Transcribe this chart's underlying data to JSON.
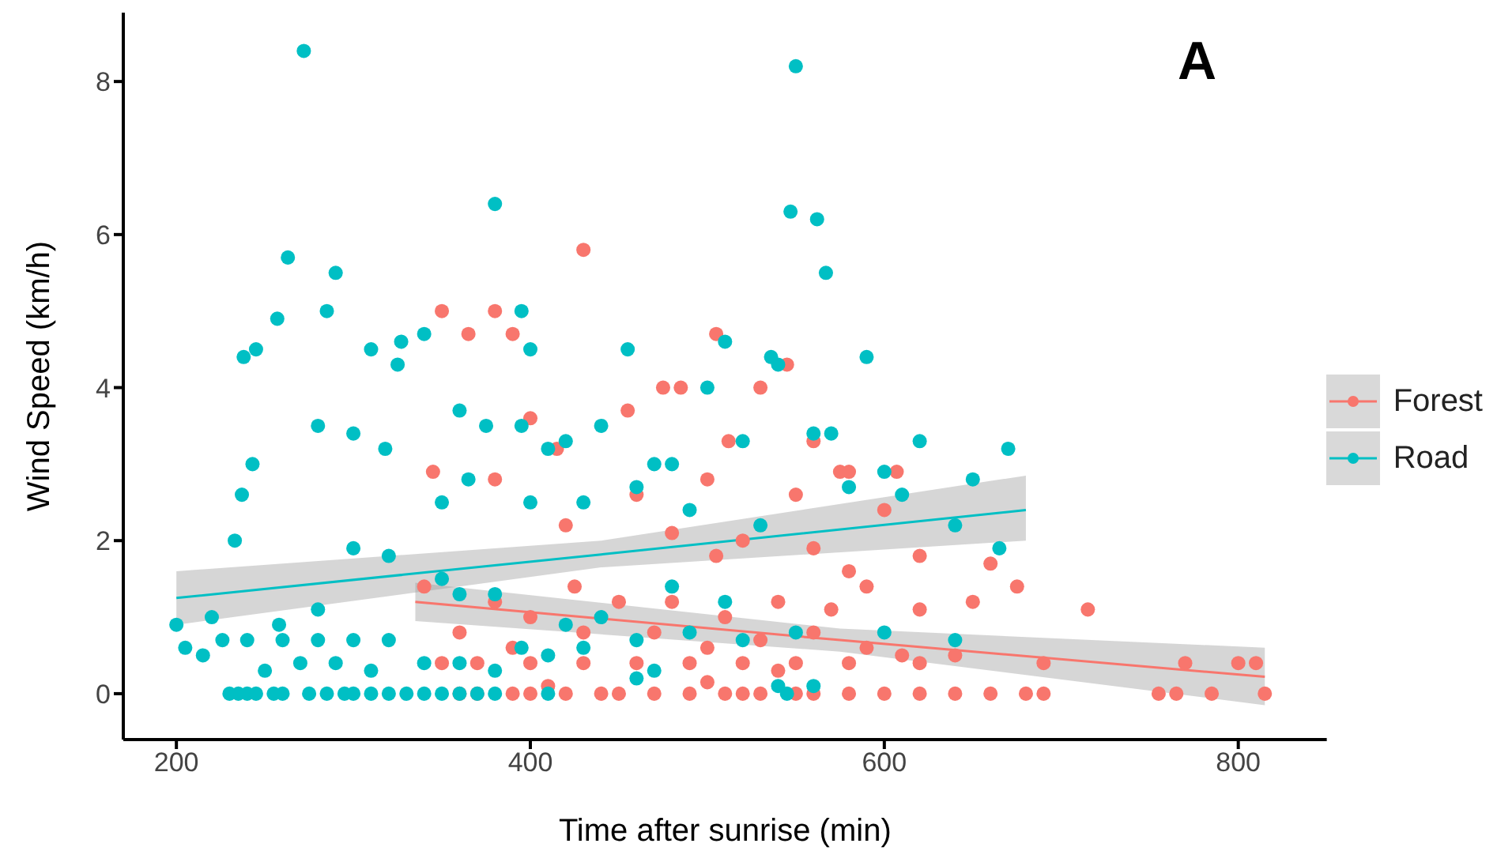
{
  "chart_data": {
    "type": "scatter",
    "xlabel": "Time after sunrise (min)",
    "ylabel": "Wind Speed (km/h)",
    "annotations": [
      "A"
    ],
    "xlim": [
      170,
      850
    ],
    "xticks": [
      200,
      400,
      600,
      800
    ],
    "ylim": [
      -0.6,
      8.9
    ],
    "yticks": [
      0,
      2,
      4,
      6,
      8
    ],
    "grid": false,
    "legend": "right",
    "marker": "circle",
    "series": [
      {
        "name": "Forest",
        "color": "#f8766d",
        "x": [
          430,
          350,
          380,
          390,
          365,
          505,
          475,
          485,
          530,
          545,
          400,
          415,
          455,
          512,
          560,
          575,
          580,
          607,
          345,
          380,
          460,
          500,
          550,
          600,
          420,
          480,
          505,
          520,
          560,
          580,
          620,
          660,
          340,
          380,
          400,
          425,
          450,
          480,
          510,
          540,
          570,
          590,
          620,
          650,
          675,
          715,
          360,
          390,
          430,
          470,
          500,
          530,
          560,
          590,
          610,
          640,
          690,
          770,
          800,
          810,
          350,
          370,
          400,
          430,
          460,
          490,
          520,
          550,
          580,
          620,
          390,
          400,
          420,
          440,
          450,
          470,
          490,
          510,
          520,
          530,
          550,
          560,
          580,
          600,
          620,
          640,
          660,
          680,
          690,
          755,
          765,
          785,
          815,
          360,
          370,
          410,
          500,
          540
        ],
        "values": [
          5.8,
          5.0,
          5.0,
          4.7,
          4.7,
          4.7,
          4.0,
          4.0,
          4.0,
          4.3,
          3.6,
          3.2,
          3.7,
          3.3,
          3.3,
          2.9,
          2.9,
          2.9,
          2.9,
          2.8,
          2.6,
          2.8,
          2.6,
          2.4,
          2.2,
          2.1,
          1.8,
          2.0,
          1.9,
          1.6,
          1.8,
          1.7,
          1.4,
          1.2,
          1.0,
          1.4,
          1.2,
          1.2,
          1.0,
          1.2,
          1.1,
          1.4,
          1.1,
          1.2,
          1.4,
          1.1,
          0.8,
          0.6,
          0.8,
          0.8,
          0.6,
          0.7,
          0.8,
          0.6,
          0.5,
          0.5,
          0.4,
          0.4,
          0.4,
          0.4,
          0.4,
          0.4,
          0.4,
          0.4,
          0.4,
          0.4,
          0.4,
          0.4,
          0.4,
          0.4,
          0,
          0,
          0,
          0,
          0,
          0,
          0,
          0,
          0,
          0,
          0,
          0,
          0,
          0,
          0,
          0,
          0,
          0,
          0,
          0,
          0,
          0,
          0,
          0,
          0,
          0.1,
          0.15,
          0.3
        ]
      },
      {
        "name": "Road",
        "color": "#00bfc4",
        "x": [
          272,
          550,
          380,
          547,
          562,
          263,
          290,
          567,
          257,
          285,
          395,
          310,
          327,
          340,
          400,
          455,
          510,
          540,
          245,
          238,
          325,
          590,
          536,
          243,
          237,
          233,
          280,
          300,
          318,
          360,
          375,
          395,
          410,
          420,
          440,
          470,
          480,
          500,
          520,
          560,
          570,
          620,
          670,
          650,
          600,
          580,
          350,
          365,
          400,
          430,
          460,
          490,
          530,
          610,
          640,
          665,
          350,
          360,
          380,
          300,
          320,
          280,
          258,
          220,
          226,
          200,
          205,
          215,
          240,
          260,
          280,
          300,
          320,
          250,
          270,
          290,
          310,
          340,
          360,
          380,
          395,
          410,
          430,
          460,
          490,
          520,
          550,
          420,
          440,
          480,
          510,
          600,
          640,
          560,
          540,
          230,
          235,
          240,
          245,
          255,
          260,
          275,
          285,
          295,
          300,
          310,
          320,
          330,
          340,
          350,
          360,
          370,
          410,
          460,
          380,
          545,
          470
        ],
        "values": [
          8.4,
          8.2,
          6.4,
          6.3,
          6.2,
          5.7,
          5.5,
          5.5,
          4.9,
          5.0,
          5.0,
          4.5,
          4.6,
          4.7,
          4.5,
          4.5,
          4.6,
          4.3,
          4.5,
          4.4,
          4.3,
          4.4,
          4.4,
          3.0,
          2.6,
          2.0,
          3.5,
          3.4,
          3.2,
          3.7,
          3.5,
          3.5,
          3.2,
          3.3,
          3.5,
          3.0,
          3.0,
          4.0,
          3.3,
          3.4,
          3.4,
          3.3,
          3.2,
          2.8,
          2.9,
          2.7,
          2.5,
          2.8,
          2.5,
          2.5,
          2.7,
          2.4,
          2.2,
          2.6,
          2.2,
          1.9,
          1.5,
          1.3,
          1.3,
          1.9,
          1.8,
          1.1,
          0.9,
          1.0,
          0.7,
          0.9,
          0.6,
          0.5,
          0.7,
          0.7,
          0.7,
          0.7,
          0.7,
          0.3,
          0.4,
          0.4,
          0.3,
          0.4,
          0.4,
          0.3,
          0.6,
          0.5,
          0.6,
          0.7,
          0.8,
          0.7,
          0.8,
          0.9,
          1.0,
          1.4,
          1.2,
          0.8,
          0.7,
          0.1,
          0.1,
          0,
          0,
          0,
          0,
          0,
          0,
          0,
          0,
          0,
          0,
          0,
          0,
          0,
          0,
          0,
          0,
          0,
          0,
          0.2,
          0,
          0,
          0.3
        ]
      },
      {
        "color": "#f8766d",
        "type": "line",
        "marker": "none",
        "x": [
          335,
          575,
          815
        ],
        "values": [
          1.2,
          0.7,
          0.22
        ],
        "lower": [
          0.95,
          0.55,
          -0.15
        ],
        "upper": [
          1.45,
          0.85,
          0.6
        ]
      },
      {
        "color": "#00bfc4",
        "type": "line",
        "marker": "none",
        "x": [
          200,
          440,
          680
        ],
        "values": [
          1.25,
          1.82,
          2.4
        ],
        "lower": [
          0.9,
          1.65,
          2.0
        ],
        "upper": [
          1.6,
          2.0,
          2.85
        ]
      }
    ]
  }
}
